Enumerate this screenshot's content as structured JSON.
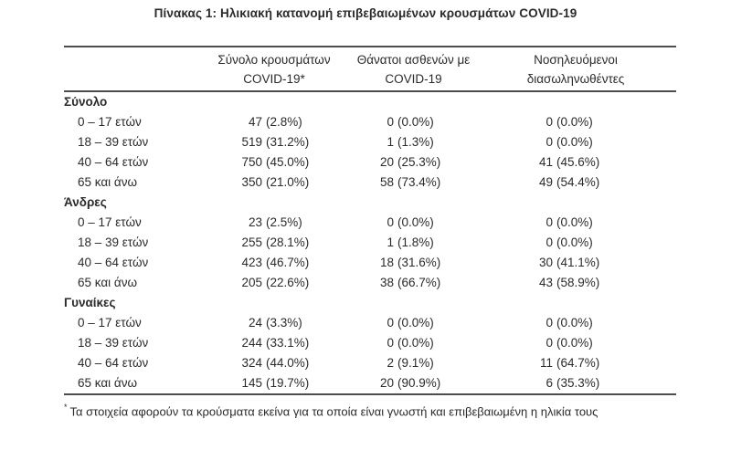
{
  "title": "Πίνακας 1: Ηλικιακή κατανομή επιβεβαιωμένων κρουσμάτων COVID-19",
  "table": {
    "columns": [
      {
        "line1": "Σύνολο κρουσμάτων",
        "line2": "COVID-19*"
      },
      {
        "line1": "Θάνατοι ασθενών με",
        "line2": "COVID-19"
      },
      {
        "line1": "Νοσηλευόμενοι",
        "line2": "διασωληνωθέντες"
      }
    ],
    "sections": [
      {
        "label": "Σύνολο",
        "rows": [
          {
            "label": "0 – 17 ετών",
            "cells": [
              {
                "n": "47",
                "p": "(2.8%)"
              },
              {
                "n": "0",
                "p": "(0.0%)"
              },
              {
                "n": "0",
                "p": "(0.0%)"
              }
            ]
          },
          {
            "label": "18 – 39 ετών",
            "cells": [
              {
                "n": "519",
                "p": "(31.2%)"
              },
              {
                "n": "1",
                "p": "(1.3%)"
              },
              {
                "n": "0",
                "p": "(0.0%)"
              }
            ]
          },
          {
            "label": "40 – 64 ετών",
            "cells": [
              {
                "n": "750",
                "p": "(45.0%)"
              },
              {
                "n": "20",
                "p": "(25.3%)"
              },
              {
                "n": "41",
                "p": "(45.6%)"
              }
            ]
          },
          {
            "label": "65 και άνω",
            "cells": [
              {
                "n": "350",
                "p": "(21.0%)"
              },
              {
                "n": "58",
                "p": "(73.4%)"
              },
              {
                "n": "49",
                "p": "(54.4%)"
              }
            ]
          }
        ]
      },
      {
        "label": "Άνδρες",
        "rows": [
          {
            "label": "0 – 17 ετών",
            "cells": [
              {
                "n": "23",
                "p": "(2.5%)"
              },
              {
                "n": "0",
                "p": "(0.0%)"
              },
              {
                "n": "0",
                "p": "(0.0%)"
              }
            ]
          },
          {
            "label": "18 – 39 ετών",
            "cells": [
              {
                "n": "255",
                "p": "(28.1%)"
              },
              {
                "n": "1",
                "p": "(1.8%)"
              },
              {
                "n": "0",
                "p": "(0.0%)"
              }
            ]
          },
          {
            "label": "40 – 64 ετών",
            "cells": [
              {
                "n": "423",
                "p": "(46.7%)"
              },
              {
                "n": "18",
                "p": "(31.6%)"
              },
              {
                "n": "30",
                "p": "(41.1%)"
              }
            ]
          },
          {
            "label": "65 και άνω",
            "cells": [
              {
                "n": "205",
                "p": "(22.6%)"
              },
              {
                "n": "38",
                "p": "(66.7%)"
              },
              {
                "n": "43",
                "p": "(58.9%)"
              }
            ]
          }
        ]
      },
      {
        "label": "Γυναίκες",
        "rows": [
          {
            "label": "0 – 17 ετών",
            "cells": [
              {
                "n": "24",
                "p": "(3.3%)"
              },
              {
                "n": "0",
                "p": "(0.0%)"
              },
              {
                "n": "0",
                "p": "(0.0%)"
              }
            ]
          },
          {
            "label": "18 – 39 ετών",
            "cells": [
              {
                "n": "244",
                "p": "(33.1%)"
              },
              {
                "n": "0",
                "p": "(0.0%)"
              },
              {
                "n": "0",
                "p": "(0.0%)"
              }
            ]
          },
          {
            "label": "40 – 64 ετών",
            "cells": [
              {
                "n": "324",
                "p": "(44.0%)"
              },
              {
                "n": "2",
                "p": "(9.1%)"
              },
              {
                "n": "11",
                "p": "(64.7%)"
              }
            ]
          },
          {
            "label": "65 και άνω",
            "cells": [
              {
                "n": "145",
                "p": "(19.7%)"
              },
              {
                "n": "20",
                "p": "(90.9%)"
              },
              {
                "n": "6",
                "p": "(35.3%)"
              }
            ]
          }
        ]
      }
    ]
  },
  "footnote": {
    "marker": "*",
    "text": "Τα στοιχεία αφορούν τα κρούσματα εκείνα για τα οποία είναι γνωστή και επιβεβαιωμένη η ηλικία τους"
  }
}
